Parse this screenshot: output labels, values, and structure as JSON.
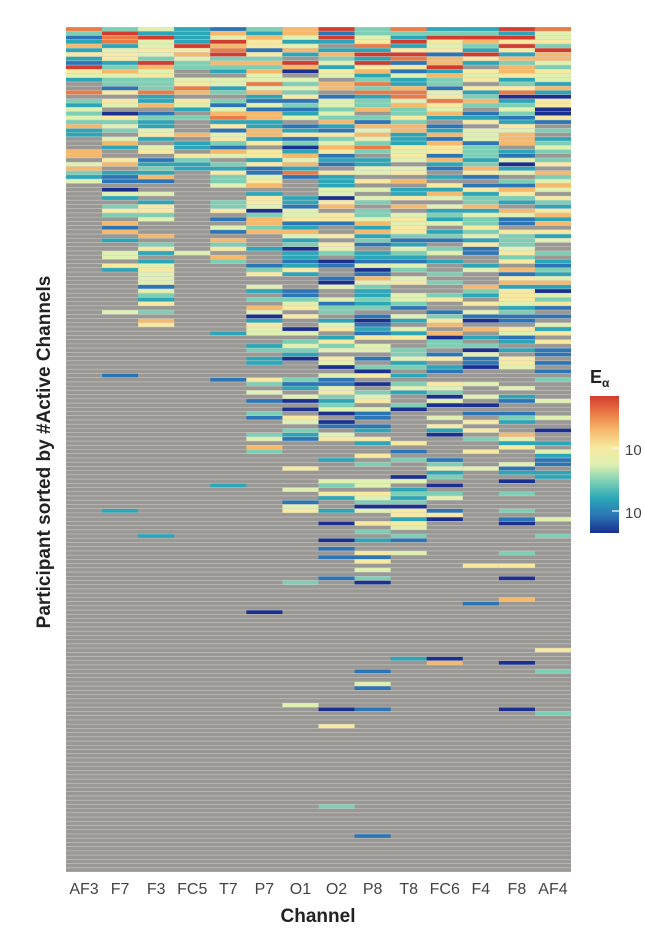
{
  "chart_data": {
    "type": "heatmap",
    "xlabel": "Channel",
    "ylabel": "Participant sorted by #Active Channels",
    "categories": [
      "AF3",
      "F7",
      "F3",
      "FC5",
      "T7",
      "P7",
      "O1",
      "O2",
      "P8",
      "T8",
      "FC6",
      "F4",
      "F8",
      "AF4"
    ],
    "num_participants": 200,
    "inactive_color": "#9a9895",
    "grid_line_color": "#d4d2ce",
    "colorbar": {
      "title": "E",
      "title_subscript": "α",
      "tick_labels": [
        "10",
        "10"
      ],
      "colors": [
        "#1a2f8f",
        "#2b74b5",
        "#2aa6b8",
        "#7ccfb5",
        "#dff0b0",
        "#f7e9a0",
        "#f6b96c",
        "#eb7b45",
        "#d23b2e"
      ]
    },
    "active_through_participant": [
      37,
      57,
      68,
      33,
      59,
      102,
      115,
      127,
      132,
      125,
      120,
      102,
      118,
      107
    ]
  }
}
